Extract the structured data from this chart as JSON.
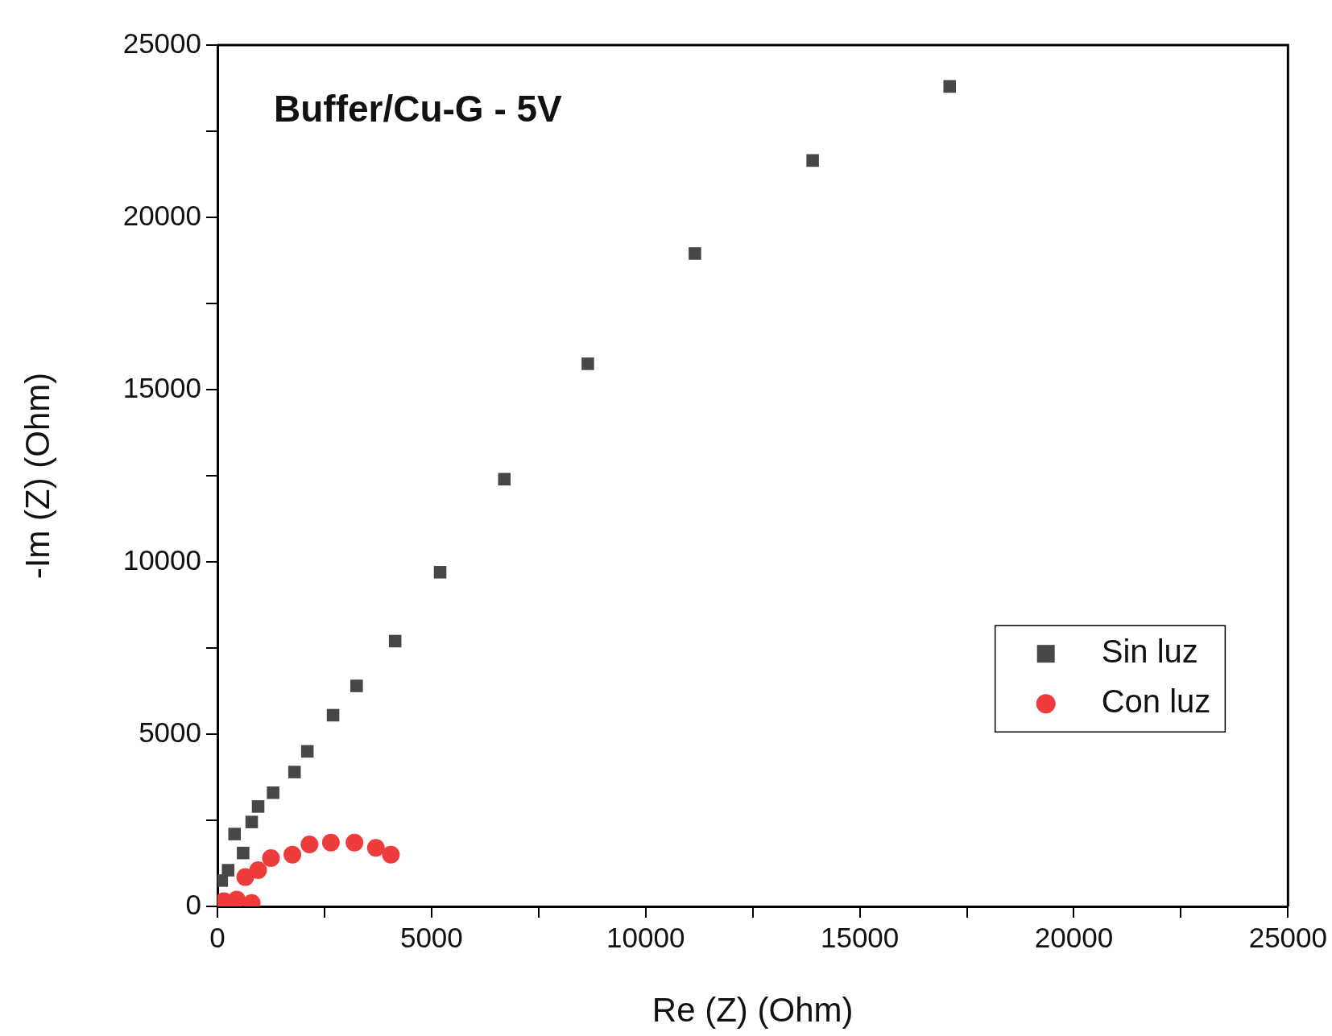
{
  "chart_data": {
    "type": "scatter",
    "title": "Buffer/Cu-G - 5V",
    "xlabel": "Re (Z) (Ohm)",
    "ylabel": "-Im (Z) (Ohm)",
    "xlim": [
      0,
      25000
    ],
    "ylim": [
      0,
      25000
    ],
    "xticks": [
      0,
      {
        "value": 2500,
        "label": null
      },
      5000,
      {
        "value": 7500,
        "label": null
      },
      10000,
      {
        "value": 12500,
        "label": null
      },
      15000,
      {
        "value": 17500,
        "label": null
      },
      20000,
      {
        "value": 22500,
        "label": null
      },
      25000
    ],
    "yticks": [
      0,
      {
        "value": 2500,
        "label": null
      },
      5000,
      {
        "value": 7500,
        "label": null
      },
      10000,
      {
        "value": 12500,
        "label": null
      },
      15000,
      {
        "value": 17500,
        "label": null
      },
      20000,
      {
        "value": 22500,
        "label": null
      },
      25000
    ],
    "grid": false,
    "legend": "right",
    "series": [
      {
        "name": "Sin luz",
        "color": "#474747",
        "marker": "square",
        "x": [
          100,
          250,
          400,
          600,
          800,
          950,
          1300,
          1800,
          2100,
          2700,
          3250,
          4150,
          5200,
          6700,
          8650,
          11150,
          13900,
          17100
        ],
        "values": [
          750,
          1050,
          2100,
          1550,
          2450,
          2900,
          3300,
          3900,
          4500,
          5550,
          6400,
          7700,
          9700,
          12400,
          15750,
          18950,
          21650,
          23800
        ]
      },
      {
        "name": "Con luz",
        "color": "#ee3b3b",
        "marker": "circle",
        "x": [
          150,
          450,
          800,
          650,
          950,
          1250,
          1750,
          2150,
          2650,
          3200,
          3700,
          4050
        ],
        "values": [
          150,
          200,
          100,
          850,
          1050,
          1400,
          1500,
          1800,
          1850,
          1850,
          1700,
          1500
        ]
      }
    ]
  }
}
